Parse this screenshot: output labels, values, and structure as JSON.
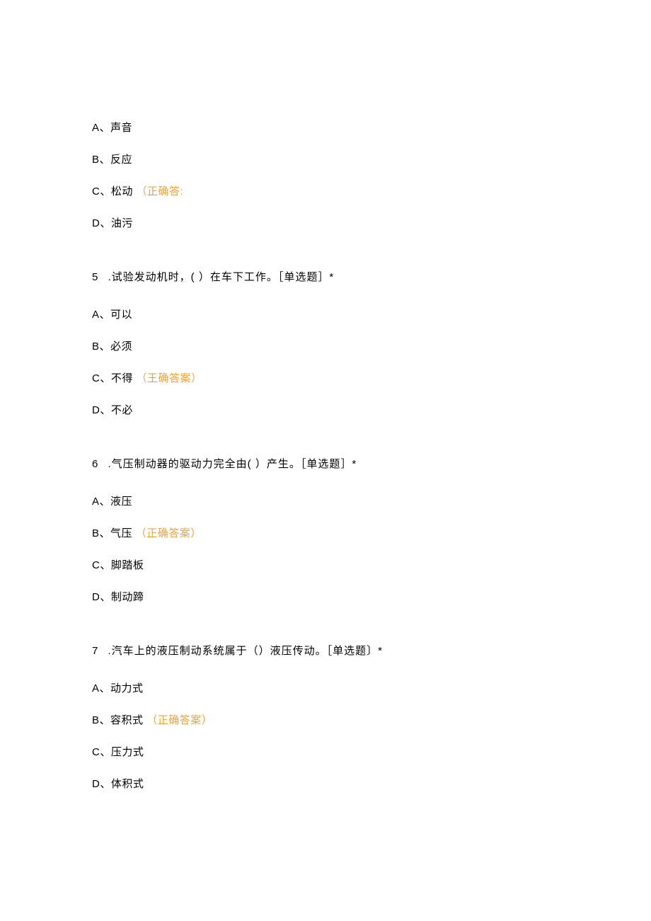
{
  "questions": [
    {
      "options": [
        {
          "label": "A、声音",
          "correct": null
        },
        {
          "label": "B、反应",
          "correct": null
        },
        {
          "label": "C、松动",
          "correct": "（正确答:"
        },
        {
          "label": "D、油污",
          "correct": null
        }
      ]
    },
    {
      "number": "5",
      "text": " .试验发动机时，( ）在车下工作。［单选题］*",
      "options": [
        {
          "label": "A、可以",
          "correct": null
        },
        {
          "label": "B、必须",
          "correct": null
        },
        {
          "label": "C、不得",
          "correct": "（王确答案）"
        },
        {
          "label": "D、不必",
          "correct": null
        }
      ]
    },
    {
      "number": "6",
      "text": " .气压制动器的驱动力完全由( ）产生。［单选题］*",
      "options": [
        {
          "label": "A、液压",
          "correct": null
        },
        {
          "label": "B、气压",
          "correct": "（正确答案）"
        },
        {
          "label": "C、脚踏板",
          "correct": null
        },
        {
          "label": "D、制动蹄",
          "correct": null
        }
      ]
    },
    {
      "number": "7",
      "text": " .汽车上的液压制动系统属于（）液压传动。［单选题〕*",
      "options": [
        {
          "label": "A、动力式",
          "correct": null
        },
        {
          "label": "B、容积式",
          "correct": "（正确答案）"
        },
        {
          "label": "C、压力式",
          "correct": null
        },
        {
          "label": "D、体积式",
          "correct": null
        }
      ]
    }
  ],
  "styling": {
    "text_color": "#000000",
    "correct_color": "#e8a33d",
    "background_color": "#ffffff",
    "font_size": 15,
    "line_spacing": 24,
    "question_spacing": 55
  }
}
